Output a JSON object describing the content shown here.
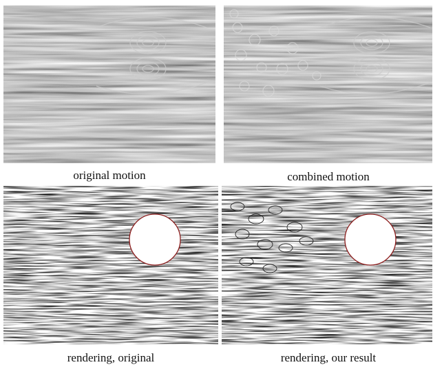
{
  "figure": {
    "panels": [
      {
        "caption": "original motion"
      },
      {
        "caption": "combined motion"
      },
      {
        "caption": "rendering, original"
      },
      {
        "caption": "rendering, our result"
      }
    ]
  }
}
